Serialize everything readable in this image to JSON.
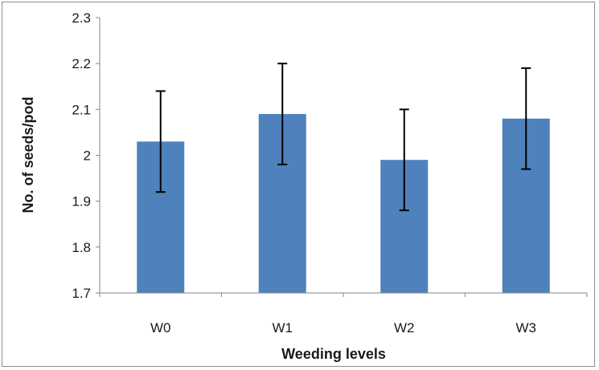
{
  "chart_data": {
    "type": "bar",
    "categories": [
      "W0",
      "W1",
      "W2",
      "W3"
    ],
    "values": [
      2.03,
      2.09,
      1.99,
      2.08
    ],
    "error_bars": [
      {
        "low": 1.92,
        "high": 2.14
      },
      {
        "low": 1.98,
        "high": 2.2
      },
      {
        "low": 1.88,
        "high": 2.1
      },
      {
        "low": 1.97,
        "high": 2.19
      }
    ],
    "title": "",
    "xlabel": "Weeding levels",
    "ylabel": "No. of  seeds/pod",
    "ylim": [
      1.7,
      2.3
    ],
    "yticks": [
      "1.7",
      "1.8",
      "1.9",
      "2",
      "2.1",
      "2.2",
      "2.3"
    ],
    "grid": false,
    "legend": "none",
    "colors": {
      "bar": "#4f81bd",
      "error_bar": "#000000",
      "axis": "#868686"
    }
  }
}
